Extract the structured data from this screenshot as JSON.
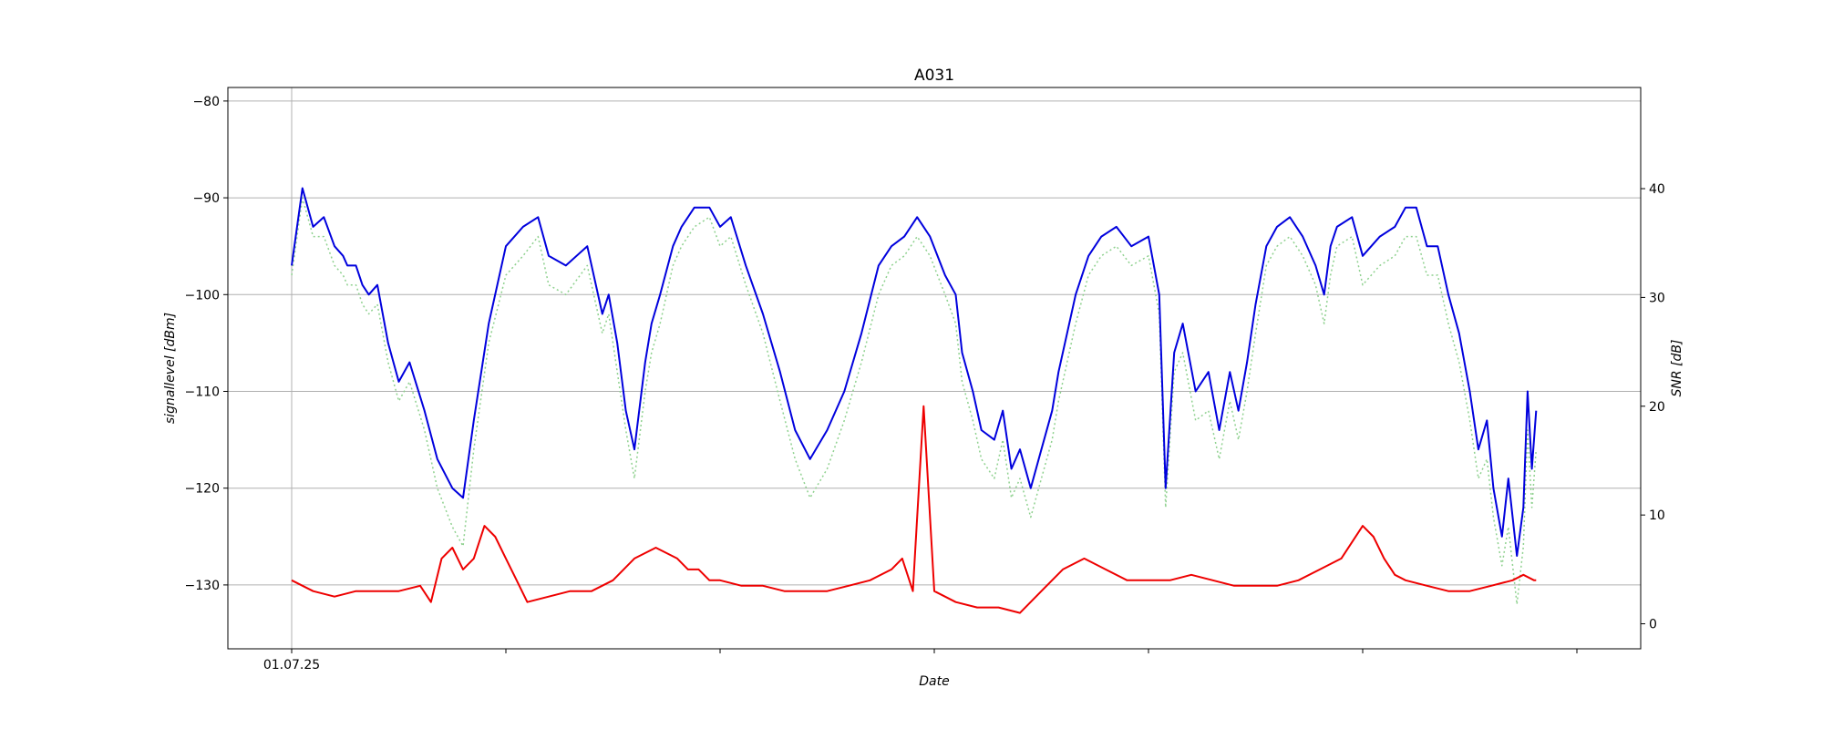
{
  "chart_data": {
    "type": "line",
    "title": "A031",
    "xlabel": "Date",
    "ylabel": "signallevel [dBm]",
    "ylabel_right": "SNR [dB]",
    "x_tick_labels": [
      "01.07.25",
      "",
      "",
      "",
      "",
      "",
      ""
    ],
    "y_left": {
      "ylim": [
        -136.6,
        -78.6
      ],
      "ticks": [
        -80,
        -90,
        -100,
        -110,
        -120,
        -130
      ]
    },
    "y_right": {
      "ylim": [
        -2.3,
        49.3
      ],
      "ticks": [
        0,
        10,
        20,
        30,
        40
      ]
    },
    "grid": true,
    "x_range_days": [
      0,
      6
    ],
    "series": [
      {
        "name": "signallevel",
        "axis": "left",
        "color": "#0000dd",
        "style": "solid",
        "x": [
          0,
          0.05,
          0.1,
          0.15,
          0.2,
          0.24,
          0.26,
          0.3,
          0.33,
          0.36,
          0.4,
          0.45,
          0.5,
          0.55,
          0.62,
          0.68,
          0.75,
          0.8,
          0.85,
          0.92,
          1.0,
          1.08,
          1.15,
          1.2,
          1.28,
          1.38,
          1.45,
          1.48,
          1.52,
          1.56,
          1.6,
          1.65,
          1.68,
          1.72,
          1.78,
          1.82,
          1.88,
          1.95,
          2.0,
          2.05,
          2.12,
          2.2,
          2.28,
          2.35,
          2.42,
          2.5,
          2.58,
          2.66,
          2.74,
          2.8,
          2.86,
          2.92,
          2.98,
          3.05,
          3.1,
          3.13,
          3.18,
          3.22,
          3.28,
          3.32,
          3.36,
          3.4,
          3.45,
          3.5,
          3.55,
          3.58,
          3.62,
          3.66,
          3.72,
          3.78,
          3.85,
          3.92,
          4.0,
          4.05,
          4.08,
          4.12,
          4.16,
          4.22,
          4.28,
          4.33,
          4.38,
          4.42,
          4.46,
          4.5,
          4.55,
          4.6,
          4.66,
          4.72,
          4.78,
          4.82,
          4.85,
          4.88,
          4.95,
          5.0,
          5.08,
          5.15,
          5.2,
          5.25,
          5.3,
          5.35,
          5.4,
          5.45,
          5.5,
          5.54,
          5.58,
          5.61,
          5.65,
          5.68,
          5.72,
          5.75,
          5.77,
          5.79,
          5.81
        ],
        "y": [
          -97,
          -89,
          -93,
          -92,
          -95,
          -96,
          -97,
          -97,
          -99,
          -100,
          -99,
          -105,
          -109,
          -107,
          -112,
          -117,
          -120,
          -121,
          -113,
          -103,
          -95,
          -93,
          -92,
          -96,
          -97,
          -95,
          -102,
          -100,
          -105,
          -112,
          -116,
          -107,
          -103,
          -100,
          -95,
          -93,
          -91,
          -91,
          -93,
          -92,
          -97,
          -102,
          -108,
          -114,
          -117,
          -114,
          -110,
          -104,
          -97,
          -95,
          -94,
          -92,
          -94,
          -98,
          -100,
          -106,
          -110,
          -114,
          -115,
          -112,
          -118,
          -116,
          -120,
          -116,
          -112,
          -108,
          -104,
          -100,
          -96,
          -94,
          -93,
          -95,
          -94,
          -100,
          -120,
          -106,
          -103,
          -110,
          -108,
          -114,
          -108,
          -112,
          -107,
          -101,
          -95,
          -93,
          -92,
          -94,
          -97,
          -100,
          -95,
          -93,
          -92,
          -96,
          -94,
          -93,
          -91,
          -91,
          -95,
          -95,
          -100,
          -104,
          -110,
          -116,
          -113,
          -120,
          -125,
          -119,
          -127,
          -122,
          -110,
          -118,
          -112
        ]
      },
      {
        "name": "signallevel (alternate)",
        "axis": "left",
        "color": "#8fd18f",
        "style": "dotted",
        "x": [
          0,
          0.05,
          0.1,
          0.15,
          0.2,
          0.24,
          0.26,
          0.3,
          0.33,
          0.36,
          0.4,
          0.45,
          0.5,
          0.55,
          0.62,
          0.68,
          0.75,
          0.8,
          0.85,
          0.92,
          1.0,
          1.08,
          1.15,
          1.2,
          1.28,
          1.38,
          1.45,
          1.48,
          1.52,
          1.56,
          1.6,
          1.65,
          1.68,
          1.72,
          1.78,
          1.82,
          1.88,
          1.95,
          2.0,
          2.05,
          2.12,
          2.2,
          2.28,
          2.35,
          2.42,
          2.5,
          2.58,
          2.66,
          2.74,
          2.8,
          2.86,
          2.92,
          2.98,
          3.05,
          3.1,
          3.13,
          3.18,
          3.22,
          3.28,
          3.32,
          3.36,
          3.4,
          3.45,
          3.5,
          3.55,
          3.58,
          3.62,
          3.66,
          3.72,
          3.78,
          3.85,
          3.92,
          4.0,
          4.05,
          4.08,
          4.12,
          4.16,
          4.22,
          4.28,
          4.33,
          4.38,
          4.42,
          4.46,
          4.5,
          4.55,
          4.6,
          4.66,
          4.72,
          4.78,
          4.82,
          4.85,
          4.88,
          4.95,
          5.0,
          5.08,
          5.15,
          5.2,
          5.25,
          5.3,
          5.35,
          5.4,
          5.45,
          5.5,
          5.54,
          5.58,
          5.61,
          5.65,
          5.68,
          5.72,
          5.75,
          5.77,
          5.79,
          5.81
        ],
        "y": [
          -98,
          -90,
          -94,
          -94,
          -97,
          -98,
          -99,
          -99,
          -101,
          -102,
          -101,
          -107,
          -111,
          -109,
          -114,
          -120,
          -124,
          -126,
          -116,
          -105,
          -98,
          -96,
          -94,
          -99,
          -100,
          -97,
          -104,
          -102,
          -108,
          -114,
          -119,
          -110,
          -106,
          -103,
          -97,
          -95,
          -93,
          -92,
          -95,
          -94,
          -99,
          -104,
          -111,
          -117,
          -121,
          -118,
          -113,
          -107,
          -100,
          -97,
          -96,
          -94,
          -96,
          -100,
          -103,
          -109,
          -113,
          -117,
          -119,
          -115,
          -121,
          -119,
          -123,
          -119,
          -115,
          -111,
          -107,
          -103,
          -98,
          -96,
          -95,
          -97,
          -96,
          -102,
          -122,
          -108,
          -106,
          -113,
          -112,
          -117,
          -111,
          -115,
          -110,
          -104,
          -97,
          -95,
          -94,
          -96,
          -99,
          -103,
          -98,
          -95,
          -94,
          -99,
          -97,
          -96,
          -94,
          -94,
          -98,
          -98,
          -103,
          -107,
          -113,
          -119,
          -117,
          -123,
          -128,
          -124,
          -132,
          -126,
          -114,
          -122,
          -116
        ]
      },
      {
        "name": "SNR",
        "axis": "right",
        "color": "#ee0000",
        "style": "solid",
        "x": [
          0,
          0.1,
          0.2,
          0.3,
          0.4,
          0.5,
          0.6,
          0.65,
          0.7,
          0.75,
          0.8,
          0.85,
          0.9,
          0.95,
          1.0,
          1.05,
          1.1,
          1.2,
          1.3,
          1.4,
          1.5,
          1.6,
          1.7,
          1.8,
          1.85,
          1.9,
          1.95,
          2.0,
          2.1,
          2.2,
          2.3,
          2.4,
          2.5,
          2.6,
          2.7,
          2.8,
          2.85,
          2.9,
          2.95,
          3.0,
          3.05,
          3.1,
          3.2,
          3.3,
          3.4,
          3.5,
          3.6,
          3.7,
          3.8,
          3.9,
          4.0,
          4.1,
          4.2,
          4.3,
          4.4,
          4.5,
          4.6,
          4.7,
          4.8,
          4.9,
          5.0,
          5.05,
          5.1,
          5.15,
          5.2,
          5.3,
          5.4,
          5.5,
          5.6,
          5.7,
          5.75,
          5.8,
          5.81
        ],
        "y": [
          4,
          3,
          2.5,
          3,
          3,
          3,
          3.5,
          2,
          6,
          7,
          5,
          6,
          9,
          8,
          6,
          4,
          2,
          2.5,
          3,
          3,
          4,
          6,
          7,
          6,
          5,
          5,
          4,
          4,
          3.5,
          3.5,
          3,
          3,
          3,
          3.5,
          4,
          5,
          6,
          3,
          20,
          3,
          2.5,
          2,
          1.5,
          1.5,
          1,
          3,
          5,
          6,
          5,
          4,
          4,
          4,
          4.5,
          4,
          3.5,
          3.5,
          3.5,
          4,
          5,
          6,
          9,
          8,
          6,
          4.5,
          4,
          3.5,
          3,
          3,
          3.5,
          4,
          4.5,
          4,
          4
        ]
      }
    ]
  }
}
